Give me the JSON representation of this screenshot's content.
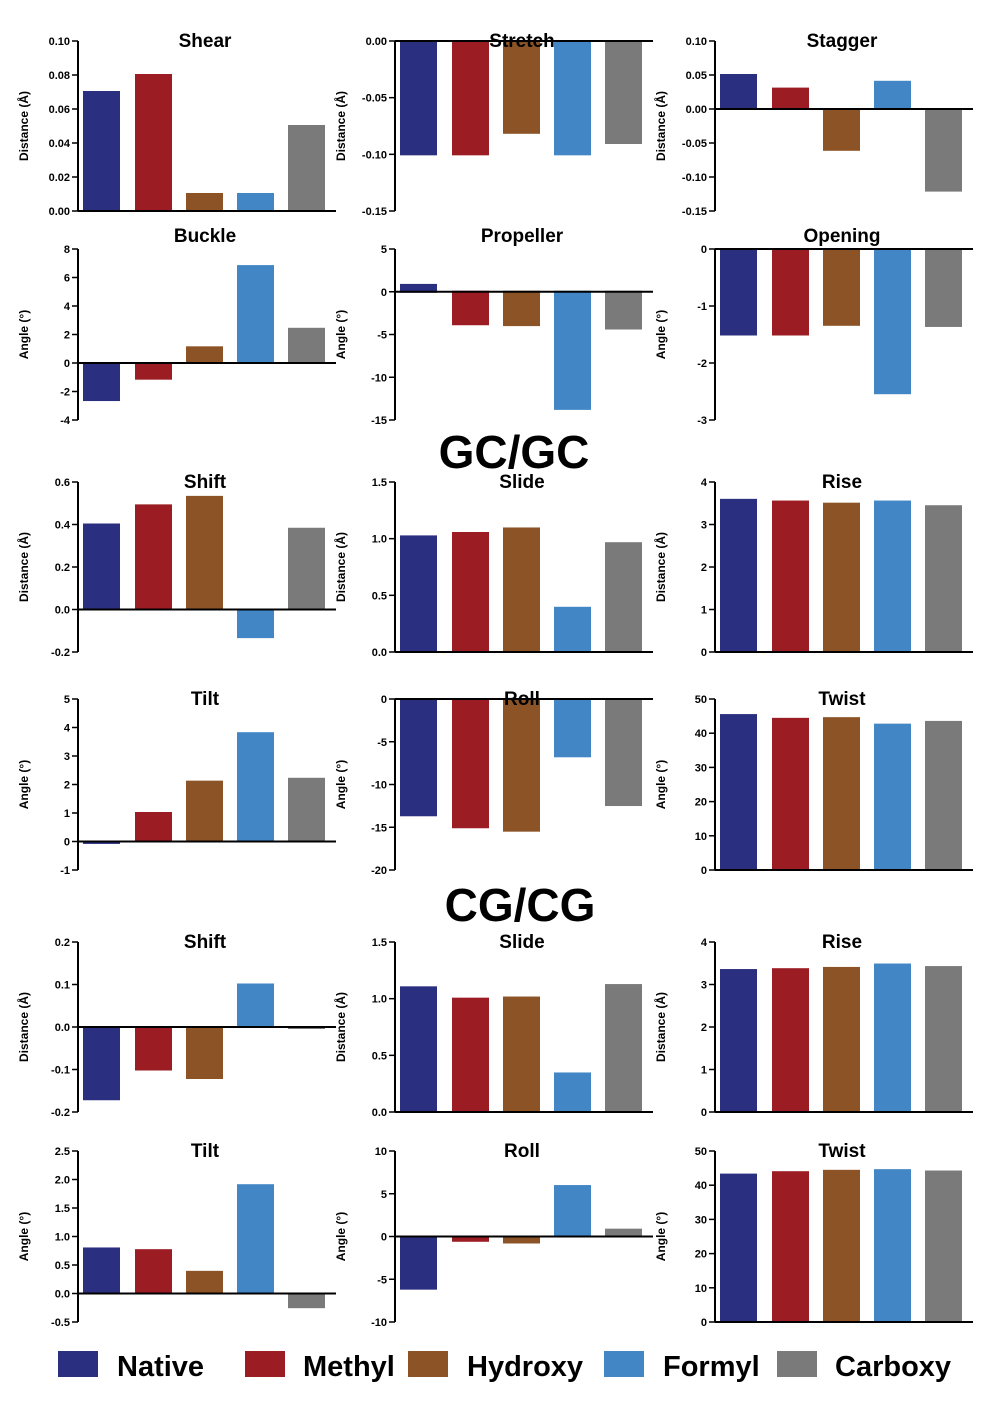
{
  "legend": [
    {
      "label": "Native",
      "color": "#2b2f7f"
    },
    {
      "label": "Methyl",
      "color": "#9b1c22"
    },
    {
      "label": "Hydroxy",
      "color": "#8c5426"
    },
    {
      "label": "Formyl",
      "color": "#4286c6"
    },
    {
      "label": "Carboxy",
      "color": "#7a7a7a"
    }
  ],
  "section_titles": [
    "GC/GC",
    "CG/CG"
  ],
  "chart_data": [
    {
      "type": "bar",
      "title": "Shear",
      "ylabel": "Distance (Å)",
      "ylim": [
        0,
        0.1
      ],
      "ticks": [
        0,
        0.02,
        0.04,
        0.06,
        0.08,
        0.1
      ],
      "tick_labels": [
        "0.00",
        "0.02",
        "0.04",
        "0.06",
        "0.08",
        "0.10"
      ],
      "categories": [
        "Native",
        "Methyl",
        "Hydroxy",
        "Formyl",
        "Carboxy"
      ],
      "values": [
        0.07,
        0.08,
        0.01,
        0.01,
        0.05
      ]
    },
    {
      "type": "bar",
      "title": "Stretch",
      "ylabel": "Distance (Å)",
      "ylim": [
        -0.15,
        0
      ],
      "ticks": [
        -0.15,
        -0.1,
        -0.05,
        0
      ],
      "tick_labels": [
        "-0.15",
        "-0.10",
        "-0.05",
        "0.00"
      ],
      "categories": [
        "Native",
        "Methyl",
        "Hydroxy",
        "Formyl",
        "Carboxy"
      ],
      "values": [
        -0.1,
        -0.1,
        -0.081,
        -0.1,
        -0.09
      ]
    },
    {
      "type": "bar",
      "title": "Stagger",
      "ylabel": "Distance (Å)",
      "ylim": [
        -0.15,
        0.1
      ],
      "ticks": [
        -0.15,
        -0.1,
        -0.05,
        0,
        0.05,
        0.1
      ],
      "tick_labels": [
        "-0.15",
        "-0.10",
        "-0.05",
        "0.00",
        "0.05",
        "0.10"
      ],
      "categories": [
        "Native",
        "Methyl",
        "Hydroxy",
        "Formyl",
        "Carboxy"
      ],
      "values": [
        0.05,
        0.03,
        -0.06,
        0.04,
        -0.12
      ]
    },
    {
      "type": "bar",
      "title": "Buckle",
      "ylabel": "Angle (°)",
      "ylim": [
        -4,
        8
      ],
      "ticks": [
        -4,
        -2,
        0,
        2,
        4,
        6,
        8
      ],
      "tick_labels": [
        "-4",
        "-2",
        "0",
        "2",
        "4",
        "6",
        "8"
      ],
      "categories": [
        "Native",
        "Methyl",
        "Hydroxy",
        "Formyl",
        "Carboxy"
      ],
      "values": [
        -2.6,
        -1.1,
        1.1,
        6.8,
        2.4
      ]
    },
    {
      "type": "bar",
      "title": "Propeller",
      "ylabel": "Angle (°)",
      "ylim": [
        -15,
        5
      ],
      "ticks": [
        -15,
        -10,
        -5,
        0,
        5
      ],
      "tick_labels": [
        "-15",
        "-10",
        "-5",
        "0",
        "5"
      ],
      "categories": [
        "Native",
        "Methyl",
        "Hydroxy",
        "Formyl",
        "Carboxy"
      ],
      "values": [
        0.8,
        -3.8,
        -3.9,
        -13.7,
        -4.3
      ]
    },
    {
      "type": "bar",
      "title": "Opening",
      "ylabel": "Angle (°)",
      "ylim": [
        -3,
        0
      ],
      "ticks": [
        -3,
        -2,
        -1,
        0
      ],
      "tick_labels": [
        "-3",
        "-2",
        "-1",
        "0"
      ],
      "categories": [
        "Native",
        "Methyl",
        "Hydroxy",
        "Formyl",
        "Carboxy"
      ],
      "values": [
        -1.5,
        -1.5,
        -1.33,
        -2.53,
        -1.35
      ]
    },
    {
      "type": "bar",
      "title": "Shift",
      "ylabel": "Distance (Å)",
      "ylim": [
        -0.2,
        0.6
      ],
      "ticks": [
        -0.2,
        0,
        0.2,
        0.4,
        0.6
      ],
      "tick_labels": [
        "-0.2",
        "0.0",
        "0.2",
        "0.4",
        "0.6"
      ],
      "categories": [
        "Native",
        "Methyl",
        "Hydroxy",
        "Formyl",
        "Carboxy"
      ],
      "values": [
        0.4,
        0.49,
        0.53,
        -0.13,
        0.38
      ]
    },
    {
      "type": "bar",
      "title": "Slide",
      "ylabel": "Distance (Å)",
      "ylim": [
        0,
        1.5
      ],
      "ticks": [
        0,
        0.5,
        1,
        1.5
      ],
      "tick_labels": [
        "0.0",
        "0.5",
        "1.0",
        "1.5"
      ],
      "categories": [
        "Native",
        "Methyl",
        "Hydroxy",
        "Formyl",
        "Carboxy"
      ],
      "values": [
        1.02,
        1.05,
        1.09,
        0.39,
        0.96
      ]
    },
    {
      "type": "bar",
      "title": "Rise",
      "ylabel": "Distance (Å)",
      "ylim": [
        0,
        4
      ],
      "ticks": [
        0,
        1,
        2,
        3,
        4
      ],
      "tick_labels": [
        "0",
        "1",
        "2",
        "3",
        "4"
      ],
      "categories": [
        "Native",
        "Methyl",
        "Hydroxy",
        "Formyl",
        "Carboxy"
      ],
      "values": [
        3.58,
        3.54,
        3.49,
        3.54,
        3.43
      ]
    },
    {
      "type": "bar",
      "title": "Tilt",
      "ylabel": "Angle (°)",
      "ylim": [
        -1,
        5
      ],
      "ticks": [
        -1,
        0,
        1,
        2,
        3,
        4,
        5
      ],
      "tick_labels": [
        "-1",
        "0",
        "1",
        "2",
        "3",
        "4",
        "5"
      ],
      "categories": [
        "Native",
        "Methyl",
        "Hydroxy",
        "Formyl",
        "Carboxy"
      ],
      "values": [
        -0.05,
        1.0,
        2.1,
        3.8,
        2.2
      ]
    },
    {
      "type": "bar",
      "title": "Roll",
      "ylabel": "Angle (°)",
      "ylim": [
        -20,
        0
      ],
      "ticks": [
        -20,
        -15,
        -10,
        -5,
        0
      ],
      "tick_labels": [
        "-20",
        "-15",
        "-10",
        "-5",
        "0"
      ],
      "categories": [
        "Native",
        "Methyl",
        "Hydroxy",
        "Formyl",
        "Carboxy"
      ],
      "values": [
        -13.6,
        -15.0,
        -15.4,
        -6.7,
        -12.4
      ]
    },
    {
      "type": "bar",
      "title": "Twist",
      "ylabel": "Angle (°)",
      "ylim": [
        0,
        50
      ],
      "ticks": [
        0,
        10,
        20,
        30,
        40,
        50
      ],
      "tick_labels": [
        "0",
        "10",
        "20",
        "30",
        "40",
        "50"
      ],
      "categories": [
        "Native",
        "Methyl",
        "Hydroxy",
        "Formyl",
        "Carboxy"
      ],
      "values": [
        45.3,
        44.2,
        44.4,
        42.5,
        43.3
      ]
    },
    {
      "type": "bar",
      "title": "Shift",
      "ylabel": "Distance (Å)",
      "ylim": [
        -0.2,
        0.2
      ],
      "ticks": [
        -0.2,
        -0.1,
        0,
        0.1,
        0.2
      ],
      "tick_labels": [
        "-0.2",
        "-0.1",
        "0.0",
        "0.1",
        "0.2"
      ],
      "categories": [
        "Native",
        "Methyl",
        "Hydroxy",
        "Formyl",
        "Carboxy"
      ],
      "values": [
        -0.17,
        -0.1,
        -0.12,
        0.1,
        0.0
      ]
    },
    {
      "type": "bar",
      "title": "Slide",
      "ylabel": "Distance (Å)",
      "ylim": [
        0,
        1.5
      ],
      "ticks": [
        0,
        0.5,
        1,
        1.5
      ],
      "tick_labels": [
        "0.0",
        "0.5",
        "1.0",
        "1.5"
      ],
      "categories": [
        "Native",
        "Methyl",
        "Hydroxy",
        "Formyl",
        "Carboxy"
      ],
      "values": [
        1.1,
        1.0,
        1.01,
        0.34,
        1.12
      ]
    },
    {
      "type": "bar",
      "title": "Rise",
      "ylabel": "Distance (Å)",
      "ylim": [
        0,
        4
      ],
      "ticks": [
        0,
        1,
        2,
        3,
        4
      ],
      "tick_labels": [
        "0",
        "1",
        "2",
        "3",
        "4"
      ],
      "categories": [
        "Native",
        "Methyl",
        "Hydroxy",
        "Formyl",
        "Carboxy"
      ],
      "values": [
        3.34,
        3.36,
        3.39,
        3.47,
        3.41
      ]
    },
    {
      "type": "bar",
      "title": "Tilt",
      "ylabel": "Angle (°)",
      "ylim": [
        -0.5,
        2.5
      ],
      "ticks": [
        -0.5,
        0,
        0.5,
        1,
        1.5,
        2,
        2.5
      ],
      "tick_labels": [
        "-0.5",
        "0.0",
        "0.5",
        "1.0",
        "1.5",
        "2.0",
        "2.5"
      ],
      "categories": [
        "Native",
        "Methyl",
        "Hydroxy",
        "Formyl",
        "Carboxy"
      ],
      "values": [
        0.79,
        0.76,
        0.38,
        1.9,
        -0.24
      ]
    },
    {
      "type": "bar",
      "title": "Roll",
      "ylabel": "Angle (°)",
      "ylim": [
        -10,
        10
      ],
      "ticks": [
        -10,
        -5,
        0,
        5,
        10
      ],
      "tick_labels": [
        "-10",
        "-5",
        "0",
        "5",
        "10"
      ],
      "categories": [
        "Native",
        "Methyl",
        "Hydroxy",
        "Formyl",
        "Carboxy"
      ],
      "values": [
        -6.1,
        -0.5,
        -0.7,
        5.9,
        0.8
      ]
    },
    {
      "type": "bar",
      "title": "Twist",
      "ylabel": "Angle (°)",
      "ylim": [
        0,
        50
      ],
      "ticks": [
        0,
        10,
        20,
        30,
        40,
        50
      ],
      "tick_labels": [
        "0",
        "10",
        "20",
        "30",
        "40",
        "50"
      ],
      "categories": [
        "Native",
        "Methyl",
        "Hydroxy",
        "Formyl",
        "Carboxy"
      ],
      "values": [
        43.1,
        43.8,
        44.2,
        44.4,
        44.0
      ]
    }
  ]
}
